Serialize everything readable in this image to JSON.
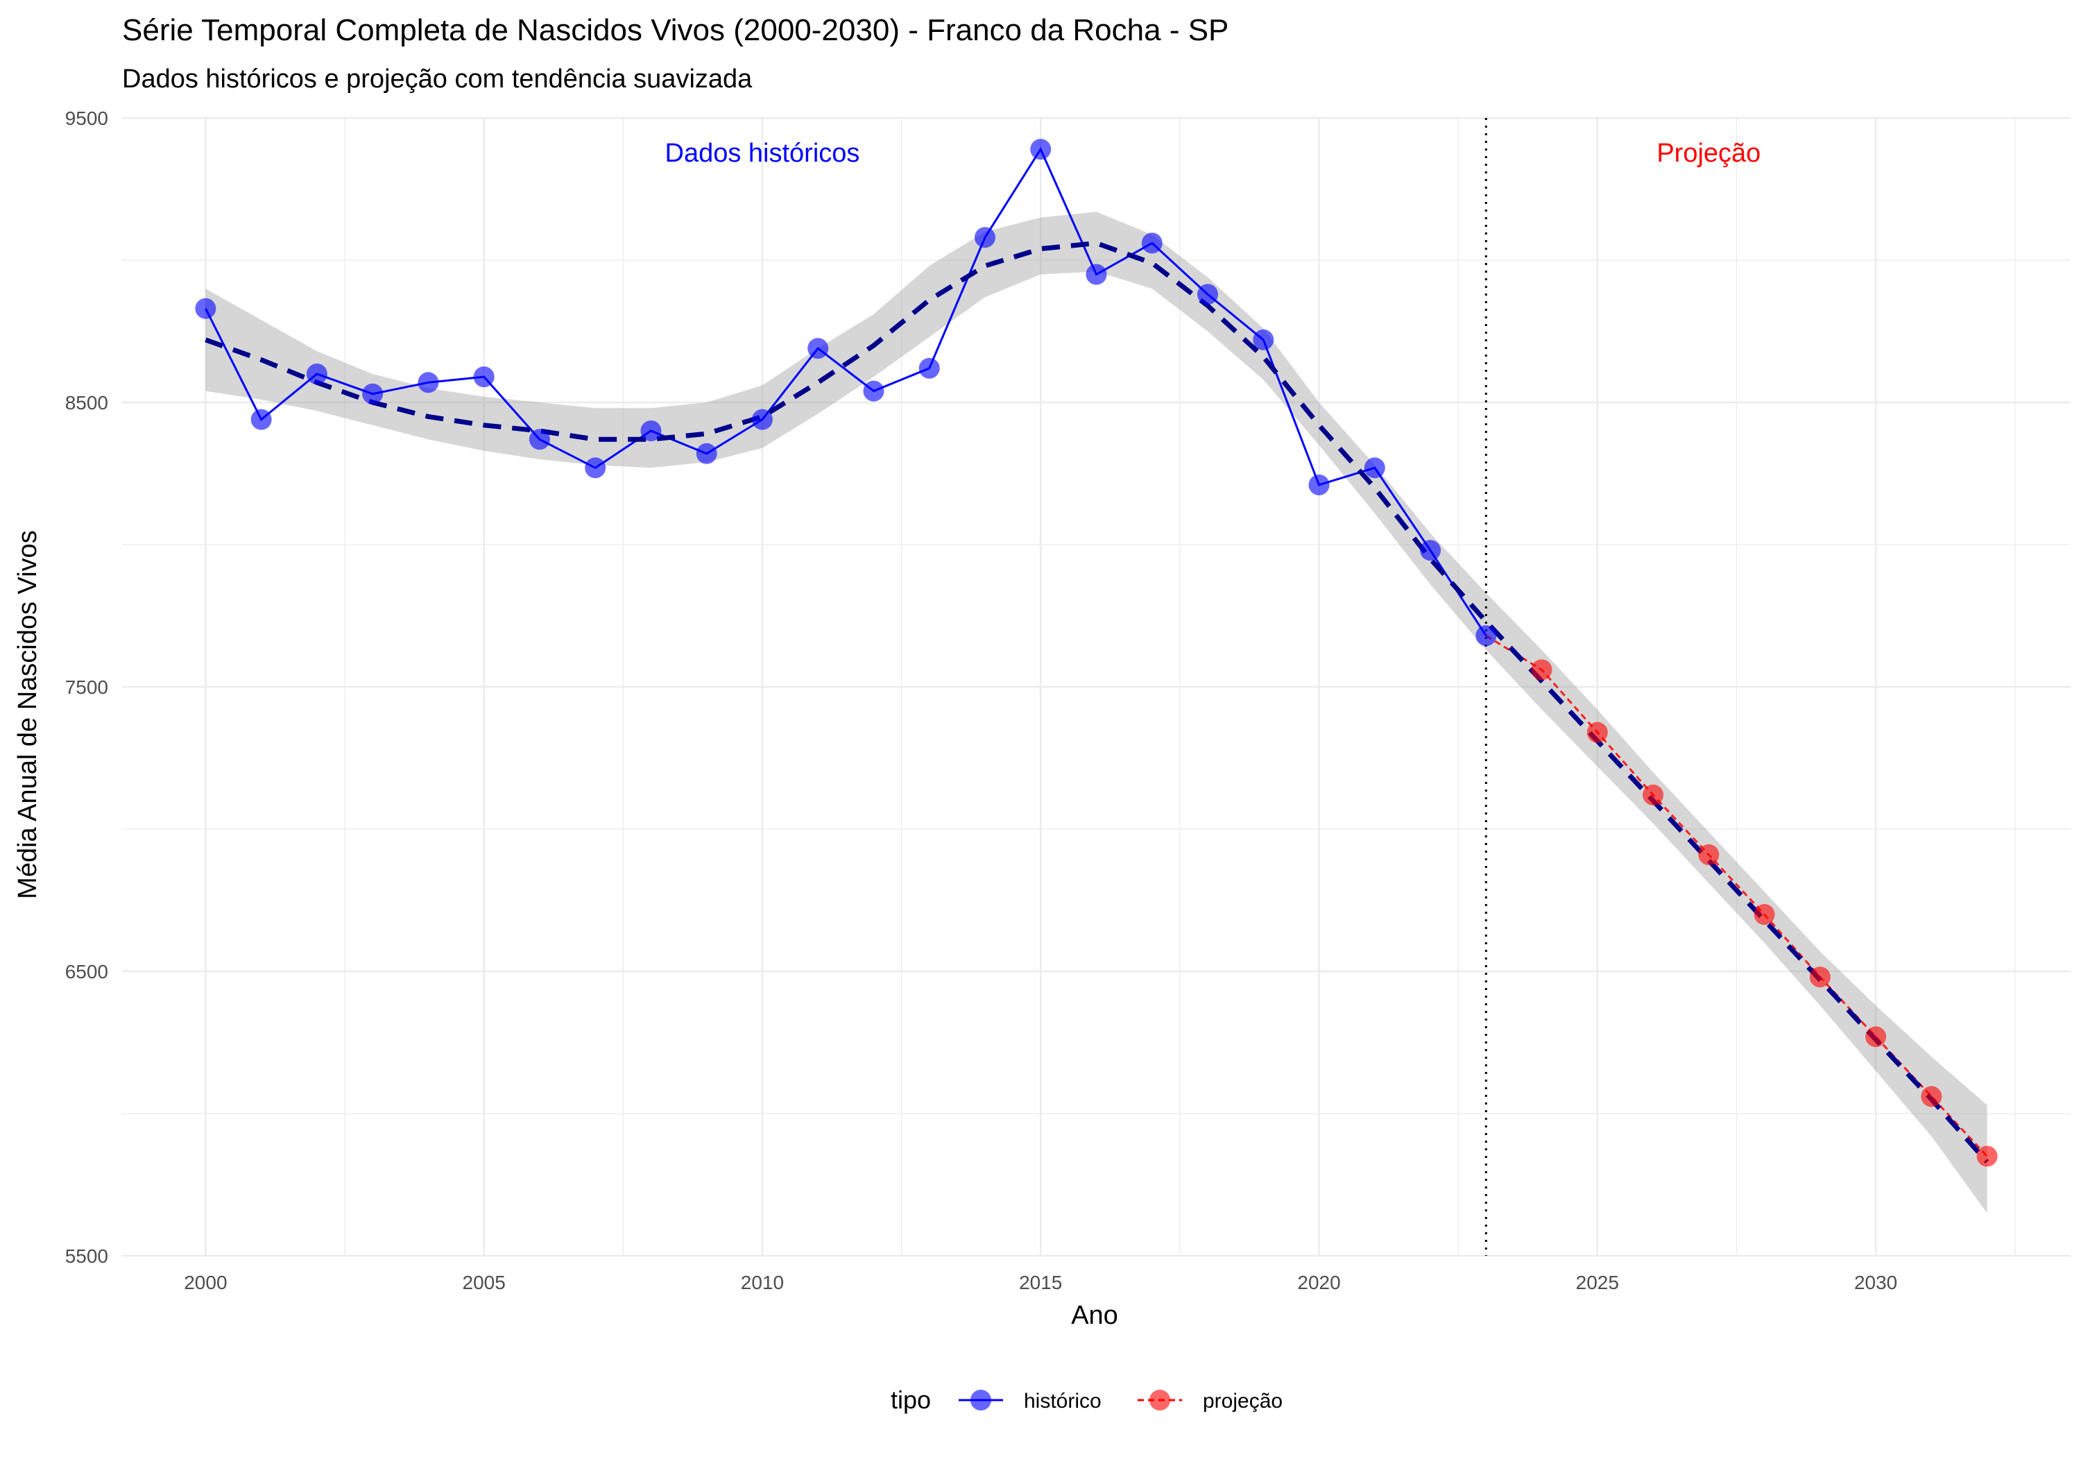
{
  "chart_data": {
    "type": "line",
    "title": "Série Temporal Completa de Nascidos Vivos (2000-2030) -  Franco da Rocha - SP",
    "subtitle": "Dados históricos e projeção com tendência suavizada",
    "xlabel": "Ano",
    "ylabel": "Média Anual de Nascidos Vivos",
    "xlim": [
      1998.5,
      2033.5
    ],
    "ylim": [
      5500,
      9500
    ],
    "x_ticks": [
      2000,
      2005,
      2010,
      2015,
      2020,
      2025,
      2030
    ],
    "x_tick_labels": [
      "2000",
      "2005",
      "2010",
      "2015",
      "2020",
      "2025",
      "2030"
    ],
    "y_ticks": [
      5500,
      6500,
      7500,
      8500,
      9500
    ],
    "y_tick_labels": [
      "5500",
      "6500",
      "7500",
      "8500",
      "9500"
    ],
    "grid": true,
    "legend_position": "bottom",
    "legend_title": "tipo",
    "cutoff_year": 2023,
    "annotations": [
      {
        "text": "Dados históricos",
        "x": 2010.0,
        "y": 9380,
        "color": "#0000ff"
      },
      {
        "text": "Projeção",
        "x": 2027.0,
        "y": 9380,
        "color": "#ff0000"
      }
    ],
    "series": [
      {
        "name": "histórico",
        "color": "#0000ff",
        "x": [
          2000,
          2001,
          2002,
          2003,
          2004,
          2005,
          2006,
          2007,
          2008,
          2009,
          2010,
          2011,
          2012,
          2013,
          2014,
          2015,
          2016,
          2017,
          2018,
          2019,
          2020,
          2021,
          2022,
          2023
        ],
        "y": [
          8830,
          8440,
          8600,
          8530,
          8570,
          8590,
          8370,
          8270,
          8400,
          8320,
          8440,
          8690,
          8540,
          8620,
          9080,
          9390,
          8950,
          9060,
          8880,
          8720,
          8210,
          8270,
          7980,
          7680
        ]
      },
      {
        "name": "projeção",
        "color": "#ff0000",
        "x": [
          2023,
          2024,
          2025,
          2026,
          2027,
          2028,
          2029,
          2030,
          2031,
          2032
        ],
        "y": [
          7680,
          7560,
          7340,
          7120,
          6910,
          6700,
          6480,
          6270,
          6060,
          5850
        ]
      }
    ],
    "trend": {
      "color": "#00008b",
      "x": [
        2000,
        2001,
        2002,
        2003,
        2004,
        2005,
        2006,
        2007,
        2008,
        2009,
        2010,
        2011,
        2012,
        2013,
        2014,
        2015,
        2016,
        2017,
        2018,
        2019,
        2020,
        2021,
        2022,
        2023,
        2024,
        2025,
        2026,
        2027,
        2028,
        2029,
        2030,
        2031,
        2032
      ],
      "y": [
        8720,
        8650,
        8570,
        8500,
        8450,
        8420,
        8400,
        8370,
        8370,
        8390,
        8450,
        8570,
        8700,
        8860,
        8980,
        9040,
        9060,
        8990,
        8840,
        8660,
        8420,
        8200,
        7950,
        7730,
        7520,
        7310,
        7100,
        6890,
        6680,
        6470,
        6260,
        6050,
        5830
      ],
      "lower": [
        8540,
        8510,
        8470,
        8420,
        8370,
        8330,
        8300,
        8280,
        8270,
        8290,
        8340,
        8460,
        8590,
        8730,
        8870,
        8950,
        8960,
        8900,
        8750,
        8580,
        8350,
        8110,
        7860,
        7630,
        7420,
        7220,
        7020,
        6810,
        6600,
        6380,
        6150,
        5920,
        5650
      ],
      "upper": [
        8900,
        8790,
        8680,
        8600,
        8550,
        8520,
        8500,
        8480,
        8480,
        8500,
        8560,
        8690,
        8810,
        8980,
        9100,
        9150,
        9170,
        9090,
        8940,
        8760,
        8500,
        8280,
        8040,
        7830,
        7630,
        7420,
        7200,
        6990,
        6780,
        6570,
        6380,
        6200,
        6030
      ]
    }
  }
}
